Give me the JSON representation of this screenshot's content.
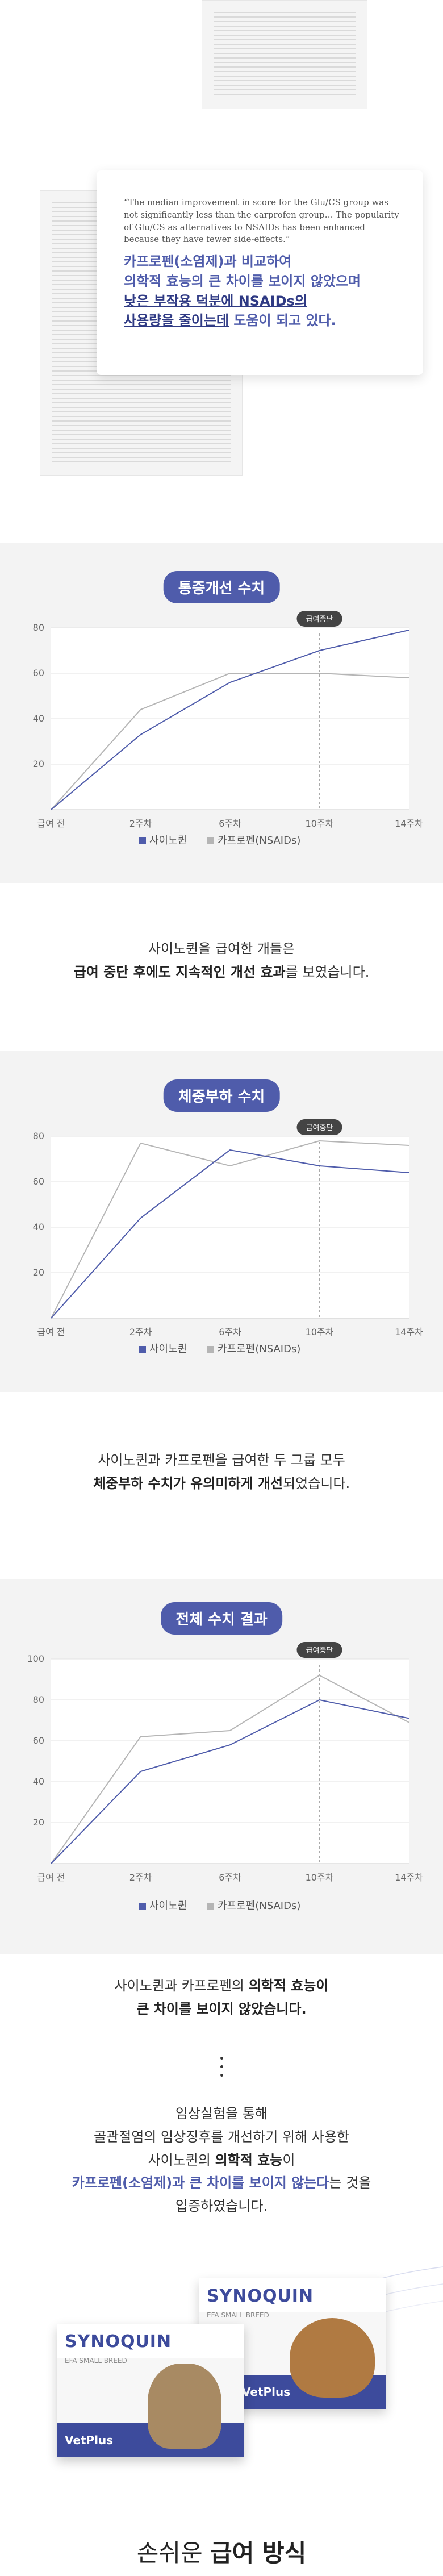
{
  "quote": {
    "english": "“The median improvement in score for the Glu/CS group was not significantly less than the carprofen group… The popularity of Glu/CS as alternatives to NSAIDs has been enhanced because they have fewer side-effects.”",
    "ko_line1": "카프로펜(소염제)과 비교하여",
    "ko_line2": "의학적 효능의 큰 차이를 보이지 않았으며",
    "ko_line3_dark": "낮은 부작용 덕분에 NSAIDs의",
    "ko_line4_dark": "사용량을 줄이는데",
    "ko_line4_rest": " 도움이 되고 있다."
  },
  "charts": [
    {
      "title": "통증개선 수치",
      "tooltip": "급여중단",
      "desc1": "사이노퀸을 급여한 개들은",
      "desc2_bold": "급여 중단 후에도 지속적인 개선 효과",
      "desc2_rest": "를 보였습니다.",
      "chart_data": {
        "type": "line",
        "x": [
          "급여 전",
          "2주차",
          "6주차",
          "10주차",
          "14주차"
        ],
        "ylim": [
          0,
          80
        ],
        "yticks": [
          20,
          40,
          60,
          80
        ],
        "series": [
          {
            "name": "사이노퀸",
            "values": [
              0,
              33,
              56,
              70,
              79
            ],
            "color": "#4f5cab"
          },
          {
            "name": "카프로펜(NSAIDs)",
            "values": [
              0,
              44,
              60,
              60,
              58
            ],
            "color": "#b5b5b5"
          }
        ]
      }
    },
    {
      "title": "체중부하 수치",
      "tooltip": "급여중단",
      "desc1": "사이노퀸과 카프로펜을 급여한 두 그룹 모두",
      "desc2_bold": "체중부하 수치가 유의미하게 개선",
      "desc2_rest": "되었습니다.",
      "chart_data": {
        "type": "line",
        "x": [
          "급여 전",
          "2주차",
          "6주차",
          "10주차",
          "14주차"
        ],
        "ylim": [
          0,
          80
        ],
        "yticks": [
          20,
          40,
          60,
          80
        ],
        "series": [
          {
            "name": "사이노퀸",
            "values": [
              0,
              44,
              74,
              67,
              64
            ],
            "color": "#4f5cab"
          },
          {
            "name": "카프로펜(NSAIDs)",
            "values": [
              0,
              77,
              67,
              78,
              76
            ],
            "color": "#b5b5b5"
          }
        ]
      }
    },
    {
      "title": "전체 수치 결과",
      "tooltip": "급여중단",
      "desc1_pre": "사이노퀸과 카프로펜의 ",
      "desc1_bold": "의학적 효능이",
      "desc2_bold": "큰 차이를 보이지 않았습니다.",
      "chart_data": {
        "type": "line",
        "x": [
          "급여 전",
          "2주차",
          "6주차",
          "10주차",
          "14주차"
        ],
        "ylim": [
          0,
          100
        ],
        "yticks": [
          20,
          40,
          60,
          80,
          100
        ],
        "series": [
          {
            "name": "사이노퀸",
            "values": [
              0,
              45,
              58,
              80,
              71
            ],
            "color": "#4f5cab"
          },
          {
            "name": "카프로펜(NSAIDs)",
            "values": [
              0,
              62,
              65,
              92,
              69
            ],
            "color": "#b5b5b5"
          }
        ]
      }
    }
  ],
  "conclusion": {
    "line1": "임상실험을 통해",
    "line2": "골관절염의 임상징후를 개선하기 위해 사용한",
    "line3_pre": "사이노퀸의 ",
    "line3_bold": "의학적 효능",
    "line3_post": "이",
    "line4_bold": "카프로펜(소염제)과 큰 차이를 보이지 않는다",
    "line4_rest": "는 것을",
    "line5": "입증하였습니다."
  },
  "product": {
    "brand": "SYNOQUIN",
    "maker": "VetPlus",
    "sub": "EFA SMALL BREED"
  },
  "footer_heading_pre": "손쉬운 ",
  "footer_heading_bold": "급여 방식"
}
